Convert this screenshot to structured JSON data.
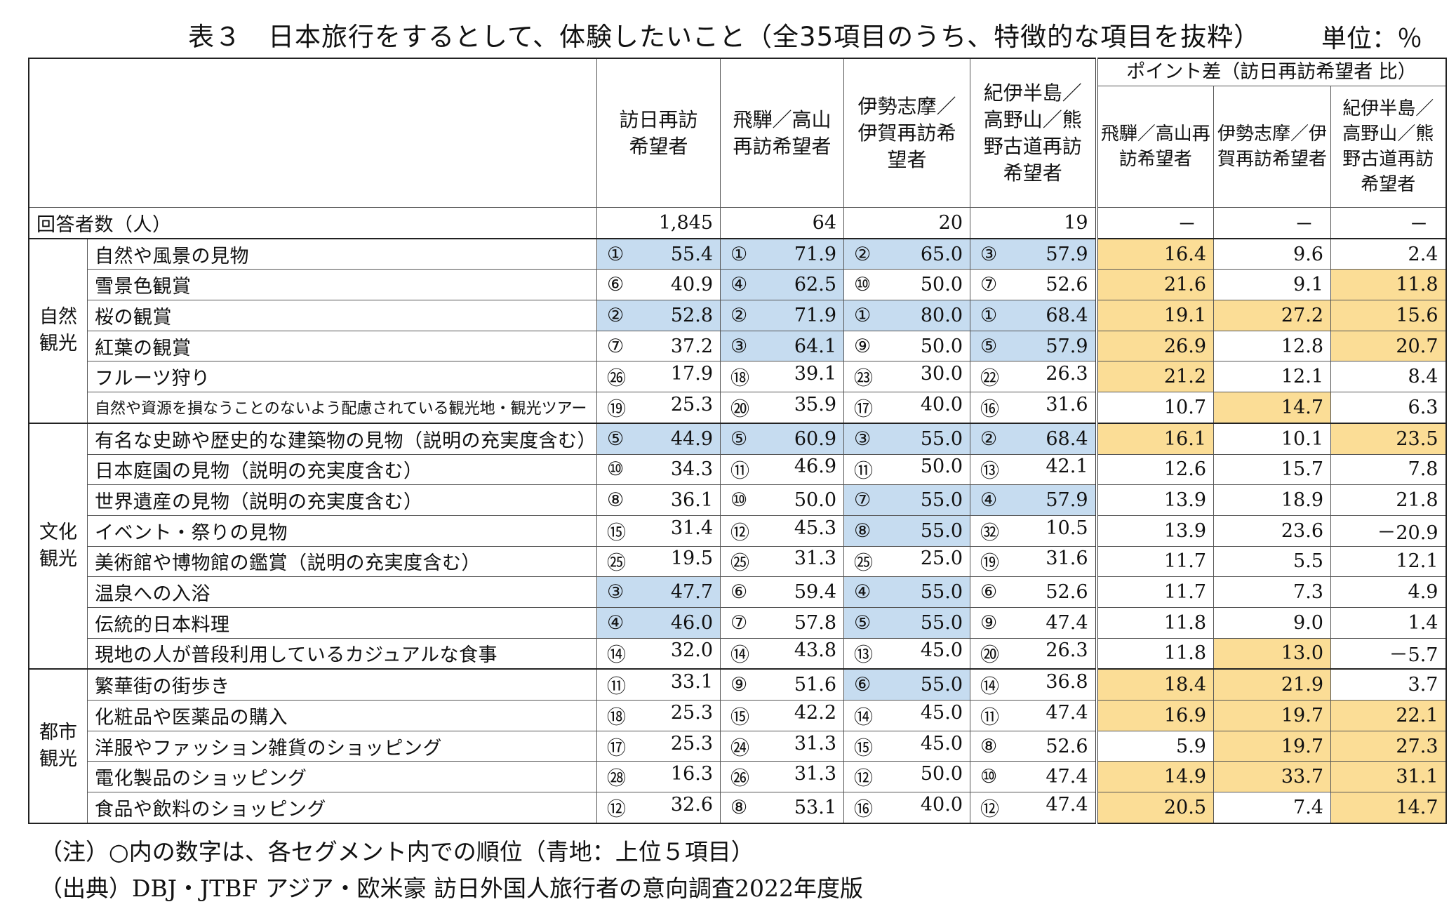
{
  "title": "表３　日本旅行をするとして、体験したいこと（全35項目のうち、特徴的な項目を抜粋）",
  "unit": "単位：％",
  "columns": {
    "c1": "訪日再訪希望者",
    "c2": "飛騨／高山再訪希望者",
    "c3": "伊勢志摩／伊賀再訪希望者",
    "c4": "紀伊半島／高野山／熊野古道再訪希望者",
    "point_title": "ポイント差（訪日再訪希望者 比）",
    "p1": "飛騨／高山再訪希望者",
    "p2": "伊勢志摩／伊賀再訪希望者",
    "p3": "紀伊半島／高野山／熊野古道再訪希望者"
  },
  "respondents": {
    "label": "回答者数（人）",
    "c1": "1,845",
    "c2": "64",
    "c3": "20",
    "c4": "19",
    "p1": "－",
    "p2": "－",
    "p3": "－"
  },
  "groups": [
    {
      "name": "自然観光",
      "rows": [
        {
          "item": "自然や風景の見物",
          "r": [
            "①",
            "①",
            "②",
            "③"
          ],
          "v": [
            "55.4",
            "71.9",
            "65.0",
            "57.9"
          ],
          "blue": [
            1,
            1,
            1,
            1
          ],
          "p": [
            "16.4",
            "9.6",
            "2.4"
          ],
          "yel": [
            1,
            0,
            0
          ]
        },
        {
          "item": "雪景色観賞",
          "r": [
            "⑥",
            "④",
            "⑩",
            "⑦"
          ],
          "v": [
            "40.9",
            "62.5",
            "50.0",
            "52.6"
          ],
          "blue": [
            0,
            1,
            0,
            0
          ],
          "p": [
            "21.6",
            "9.1",
            "11.8"
          ],
          "yel": [
            1,
            0,
            1
          ]
        },
        {
          "item": "桜の観賞",
          "r": [
            "②",
            "②",
            "①",
            "①"
          ],
          "v": [
            "52.8",
            "71.9",
            "80.0",
            "68.4"
          ],
          "blue": [
            1,
            1,
            1,
            1
          ],
          "p": [
            "19.1",
            "27.2",
            "15.6"
          ],
          "yel": [
            1,
            1,
            1
          ]
        },
        {
          "item": "紅葉の観賞",
          "r": [
            "⑦",
            "③",
            "⑨",
            "⑤"
          ],
          "v": [
            "37.2",
            "64.1",
            "50.0",
            "57.9"
          ],
          "blue": [
            0,
            1,
            0,
            1
          ],
          "p": [
            "26.9",
            "12.8",
            "20.7"
          ],
          "yel": [
            1,
            0,
            1
          ]
        },
        {
          "item": "フルーツ狩り",
          "r": [
            "㉖",
            "⑱",
            "㉓",
            "㉒"
          ],
          "v": [
            "17.9",
            "39.1",
            "30.0",
            "26.3"
          ],
          "blue": [
            0,
            0,
            0,
            0
          ],
          "p": [
            "21.2",
            "12.1",
            "8.4"
          ],
          "yel": [
            1,
            0,
            0
          ]
        },
        {
          "item": "自然や資源を損なうことのないよう配慮されている観光地・観光ツアー",
          "small": true,
          "r": [
            "⑲",
            "⑳",
            "⑰",
            "⑯"
          ],
          "v": [
            "25.3",
            "35.9",
            "40.0",
            "31.6"
          ],
          "blue": [
            0,
            0,
            0,
            0
          ],
          "p": [
            "10.7",
            "14.7",
            "6.3"
          ],
          "yel": [
            0,
            1,
            0
          ]
        }
      ]
    },
    {
      "name": "文化観光",
      "rows": [
        {
          "item": "有名な史跡や歴史的な建築物の見物（説明の充実度含む）",
          "r": [
            "⑤",
            "⑤",
            "③",
            "②"
          ],
          "v": [
            "44.9",
            "60.9",
            "55.0",
            "68.4"
          ],
          "blue": [
            1,
            1,
            1,
            1
          ],
          "p": [
            "16.1",
            "10.1",
            "23.5"
          ],
          "yel": [
            1,
            0,
            1
          ]
        },
        {
          "item": "日本庭園の見物（説明の充実度含む）",
          "r": [
            "⑩",
            "⑪",
            "⑪",
            "⑬"
          ],
          "v": [
            "34.3",
            "46.9",
            "50.0",
            "42.1"
          ],
          "blue": [
            0,
            0,
            0,
            0
          ],
          "p": [
            "12.6",
            "15.7",
            "7.8"
          ],
          "yel": [
            0,
            0,
            0
          ]
        },
        {
          "item": "世界遺産の見物（説明の充実度含む）",
          "r": [
            "⑧",
            "⑩",
            "⑦",
            "④"
          ],
          "v": [
            "36.1",
            "50.0",
            "55.0",
            "57.9"
          ],
          "blue": [
            0,
            0,
            1,
            1
          ],
          "p": [
            "13.9",
            "18.9",
            "21.8"
          ],
          "yel": [
            0,
            0,
            0
          ]
        },
        {
          "item": "イベント・祭りの見物",
          "r": [
            "⑮",
            "⑫",
            "⑧",
            "㉜"
          ],
          "v": [
            "31.4",
            "45.3",
            "55.0",
            "10.5"
          ],
          "blue": [
            0,
            0,
            1,
            0
          ],
          "p": [
            "13.9",
            "23.6",
            "－20.9"
          ],
          "yel": [
            0,
            0,
            0
          ]
        },
        {
          "item": "美術館や博物館の鑑賞（説明の充実度含む）",
          "r": [
            "㉕",
            "㉕",
            "㉕",
            "⑲"
          ],
          "v": [
            "19.5",
            "31.3",
            "25.0",
            "31.6"
          ],
          "blue": [
            0,
            0,
            0,
            0
          ],
          "p": [
            "11.7",
            "5.5",
            "12.1"
          ],
          "yel": [
            0,
            0,
            0
          ]
        },
        {
          "item": "温泉への入浴",
          "r": [
            "③",
            "⑥",
            "④",
            "⑥"
          ],
          "v": [
            "47.7",
            "59.4",
            "55.0",
            "52.6"
          ],
          "blue": [
            1,
            0,
            1,
            0
          ],
          "p": [
            "11.7",
            "7.3",
            "4.9"
          ],
          "yel": [
            0,
            0,
            0
          ]
        },
        {
          "item": "伝統的日本料理",
          "r": [
            "④",
            "⑦",
            "⑤",
            "⑨"
          ],
          "v": [
            "46.0",
            "57.8",
            "55.0",
            "47.4"
          ],
          "blue": [
            1,
            0,
            1,
            0
          ],
          "p": [
            "11.8",
            "9.0",
            "1.4"
          ],
          "yel": [
            0,
            0,
            0
          ]
        },
        {
          "item": "現地の人が普段利用しているカジュアルな食事",
          "r": [
            "⑭",
            "⑭",
            "⑬",
            "⑳"
          ],
          "v": [
            "32.0",
            "43.8",
            "45.0",
            "26.3"
          ],
          "blue": [
            0,
            0,
            0,
            0
          ],
          "p": [
            "11.8",
            "13.0",
            "－5.7"
          ],
          "yel": [
            0,
            1,
            0
          ]
        }
      ]
    },
    {
      "name": "都市観光",
      "rows": [
        {
          "item": "繁華街の街歩き",
          "r": [
            "⑪",
            "⑨",
            "⑥",
            "⑭"
          ],
          "v": [
            "33.1",
            "51.6",
            "55.0",
            "36.8"
          ],
          "blue": [
            0,
            0,
            1,
            0
          ],
          "p": [
            "18.4",
            "21.9",
            "3.7"
          ],
          "yel": [
            1,
            1,
            0
          ]
        },
        {
          "item": "化粧品や医薬品の購入",
          "r": [
            "⑱",
            "⑮",
            "⑭",
            "⑪"
          ],
          "v": [
            "25.3",
            "42.2",
            "45.0",
            "47.4"
          ],
          "blue": [
            0,
            0,
            0,
            0
          ],
          "p": [
            "16.9",
            "19.7",
            "22.1"
          ],
          "yel": [
            1,
            1,
            1
          ]
        },
        {
          "item": "洋服やファッション雑貨のショッピング",
          "r": [
            "⑰",
            "㉔",
            "⑮",
            "⑧"
          ],
          "v": [
            "25.3",
            "31.3",
            "45.0",
            "52.6"
          ],
          "blue": [
            0,
            0,
            0,
            0
          ],
          "p": [
            "5.9",
            "19.7",
            "27.3"
          ],
          "yel": [
            0,
            1,
            1
          ]
        },
        {
          "item": "電化製品のショッピング",
          "r": [
            "㉘",
            "㉖",
            "⑫",
            "⑩"
          ],
          "v": [
            "16.3",
            "31.3",
            "50.0",
            "47.4"
          ],
          "blue": [
            0,
            0,
            0,
            0
          ],
          "p": [
            "14.9",
            "33.7",
            "31.1"
          ],
          "yel": [
            1,
            1,
            1
          ]
        },
        {
          "item": "食品や飲料のショッピング",
          "r": [
            "⑫",
            "⑧",
            "⑯",
            "⑫"
          ],
          "v": [
            "32.6",
            "53.1",
            "40.0",
            "47.4"
          ],
          "blue": [
            0,
            0,
            0,
            0
          ],
          "p": [
            "20.5",
            "7.4",
            "14.7"
          ],
          "yel": [
            1,
            0,
            1
          ]
        }
      ]
    }
  ],
  "colors": {
    "blue": "#c6dcf0",
    "yellow": "#fbdd96"
  },
  "notes": [
    "（注）○内の数字は、各セグメント内での順位（青地：上位５項目）",
    "（出典）DBJ・JTBF アジア・欧米豪 訪日外国人旅行者の意向調査2022年度版"
  ]
}
